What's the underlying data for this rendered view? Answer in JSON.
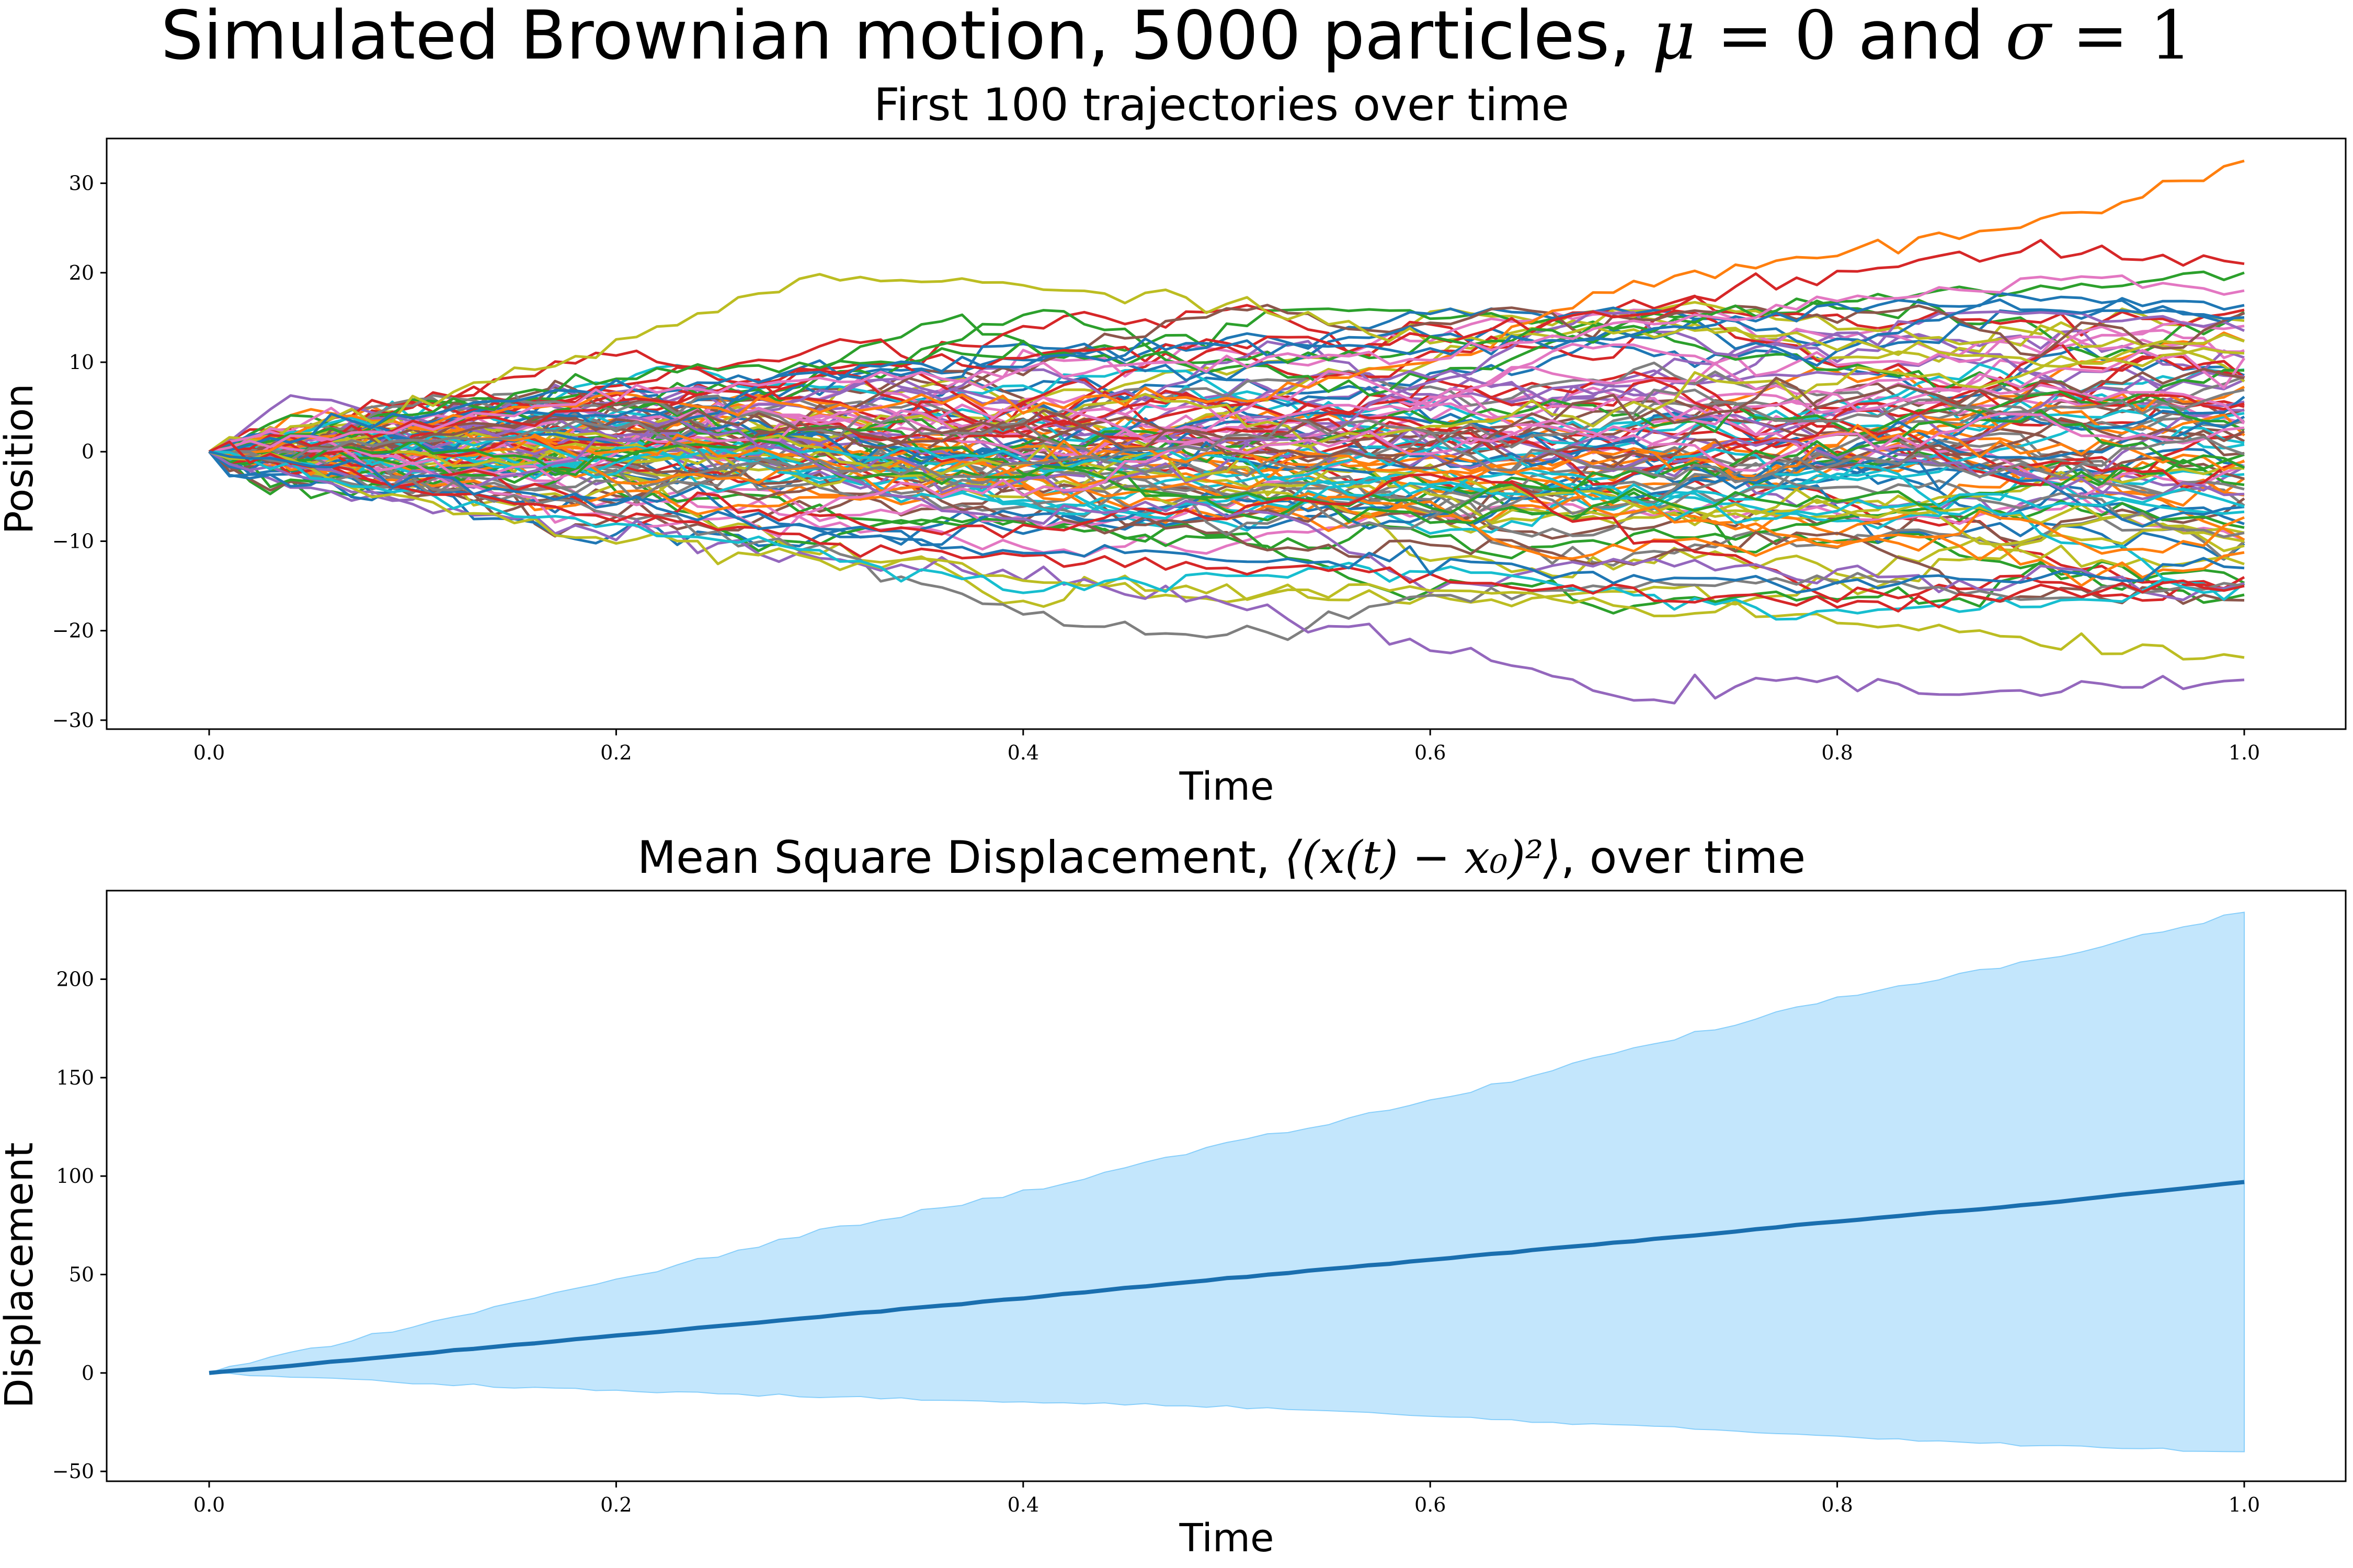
{
  "figure": {
    "title_prefix": "Simulated Brownian motion, 5000 particles, ",
    "title_mu": "μ",
    "title_eq0": " = 0",
    "title_and": " and ",
    "title_sigma": "σ",
    "title_eq1": " = 1"
  },
  "chart_data": [
    {
      "type": "line",
      "title": "First 100 trajectories over time",
      "xlabel": "Time",
      "ylabel": "Position",
      "xlim": [
        0,
        1.0
      ],
      "ylim": [
        -31,
        35
      ],
      "xticks": [
        "0.0",
        "0.2",
        "0.4",
        "0.6",
        "0.8",
        "1.0"
      ],
      "xtick_values": [
        0,
        0.2,
        0.4,
        0.6,
        0.8,
        1.0
      ],
      "yticks": [
        "30",
        "20",
        "10",
        "0",
        "−10",
        "−20",
        "−30"
      ],
      "ytick_values": [
        30,
        20,
        10,
        0,
        -10,
        -20,
        -30
      ],
      "grid": false,
      "n_series": 100,
      "n_steps": 100,
      "palette": [
        "#1f77b4",
        "#ff7f0e",
        "#2ca02c",
        "#d62728",
        "#9467bd",
        "#8c564b",
        "#e377c2",
        "#7f7f7f",
        "#bcbd22",
        "#17becf"
      ],
      "x": [
        0,
        0.1,
        0.2,
        0.3,
        0.4,
        0.5,
        0.6,
        0.7,
        0.8,
        0.9,
        1.0
      ],
      "series": [
        {
          "color": "#ff7f0e",
          "values": [
            0,
            3,
            6,
            5,
            6,
            6,
            10,
            19,
            22,
            25,
            32.5
          ]
        },
        {
          "color": "#bcbd22",
          "values": [
            0,
            5,
            12,
            20,
            18,
            17,
            12,
            14,
            12,
            10,
            11
          ]
        },
        {
          "color": "#d62728",
          "values": [
            0,
            3,
            5,
            9,
            11,
            12,
            13,
            16,
            20,
            23,
            21
          ]
        },
        {
          "color": "#2ca02c",
          "values": [
            0,
            4,
            8,
            10,
            11,
            10,
            12,
            14,
            17,
            18,
            20
          ]
        },
        {
          "color": "#1f77b4",
          "values": [
            0,
            4,
            7,
            9,
            10,
            12,
            11,
            13,
            16,
            17,
            15
          ]
        },
        {
          "color": "#e377c2",
          "values": [
            0,
            3,
            6,
            8,
            9,
            10,
            11,
            14,
            17,
            19,
            18
          ]
        },
        {
          "color": "#7f7f7f",
          "values": [
            0,
            -4,
            -7,
            -11,
            -18,
            -21,
            -16,
            -15,
            -14,
            -16,
            -15
          ]
        },
        {
          "color": "#9467bd",
          "values": [
            0,
            -6,
            -9,
            -12,
            -14,
            -17,
            -22,
            -27,
            -26,
            -27,
            -25.5
          ]
        },
        {
          "color": "#bcbd22",
          "values": [
            0,
            -5,
            -10,
            -12,
            -14,
            -16,
            -15,
            -17,
            -19,
            -21,
            -23
          ]
        },
        {
          "color": "#17becf",
          "values": [
            0,
            -5,
            -8,
            -12,
            -15,
            -14,
            -13,
            -16,
            -18,
            -17,
            -15
          ]
        },
        {
          "color": "#d62728",
          "values": [
            0,
            -4,
            -7,
            -10,
            -12,
            -13,
            -14,
            -16,
            -17,
            -16,
            -15
          ]
        },
        {
          "color": "#1f77b4",
          "values": [
            0,
            -3,
            -6,
            -9,
            -11,
            -12,
            -12,
            -14,
            -15,
            -14,
            -13
          ]
        }
      ]
    },
    {
      "type": "area",
      "title_prefix": "Mean Square Displacement, ",
      "title_math": "⟨(x(t) − x₀)²⟩",
      "title_suffix": ", over time",
      "xlabel": "Time",
      "ylabel": "Displacement",
      "xlim": [
        0,
        1.0
      ],
      "ylim": [
        -55,
        245
      ],
      "xticks": [
        "0.0",
        "0.2",
        "0.4",
        "0.6",
        "0.8",
        "1.0"
      ],
      "xtick_values": [
        0,
        0.2,
        0.4,
        0.6,
        0.8,
        1.0
      ],
      "yticks": [
        "200",
        "150",
        "100",
        "50",
        "0",
        "−50"
      ],
      "ytick_values": [
        200,
        150,
        100,
        50,
        0,
        -50
      ],
      "grid": false,
      "x": [
        0,
        0.1,
        0.2,
        0.3,
        0.4,
        0.5,
        0.6,
        0.7,
        0.8,
        0.9,
        1.0
      ],
      "mean": [
        0,
        9.5,
        19,
        28.5,
        38,
        48,
        57.5,
        67,
        77,
        86,
        97
      ],
      "upper": [
        0,
        24,
        47,
        72,
        92,
        116,
        138,
        165,
        190,
        210,
        234
      ],
      "lower": [
        0,
        -5,
        -9,
        -12,
        -15,
        -17,
        -22,
        -27,
        -32,
        -37,
        -40
      ],
      "line_color": "#1a6faf",
      "fill_color": "#87cefa"
    }
  ]
}
